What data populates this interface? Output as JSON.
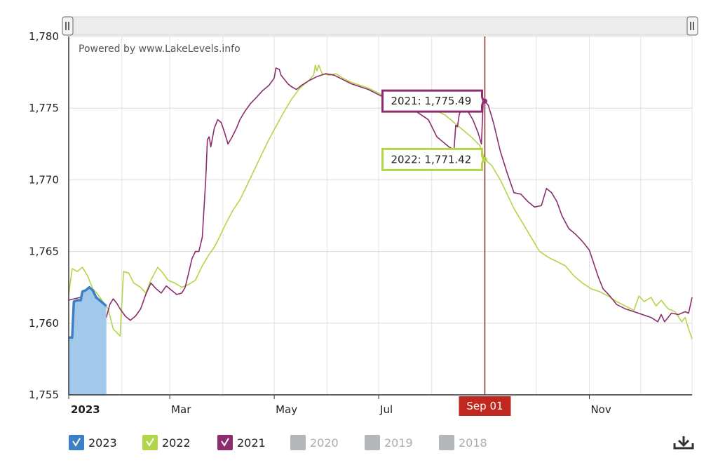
{
  "chart_data": {
    "type": "line",
    "credit": "Powered by www.LakeLevels.info",
    "ylim": [
      1755,
      1780
    ],
    "y_ticks": [
      "1,755",
      "1,760",
      "1,765",
      "1,770",
      "1,775",
      "1,780"
    ],
    "x_ticks": [
      {
        "label": "2023",
        "day": 0,
        "bold": true
      },
      {
        "label": "Mar",
        "day": 59
      },
      {
        "label": "May",
        "day": 120
      },
      {
        "label": "Jul",
        "day": 181
      },
      {
        "label": "Nov",
        "day": 304
      }
    ],
    "cursor": {
      "label": "Sep 01",
      "day": 243
    },
    "tooltips": [
      {
        "series": "2021",
        "text": "2021: 1,775.49",
        "value": 1775.49
      },
      {
        "series": "2022",
        "text": "2022: 1,771.42",
        "value": 1771.42
      }
    ],
    "series": [
      {
        "name": "2023",
        "color": "#3d7fc4",
        "fill": "#a2c8ea",
        "area": true,
        "points": [
          [
            0,
            1759
          ],
          [
            2,
            1759
          ],
          [
            3,
            1761.5
          ],
          [
            5,
            1761.6
          ],
          [
            7,
            1761.6
          ],
          [
            8,
            1762.2
          ],
          [
            10,
            1762.3
          ],
          [
            12,
            1762.5
          ],
          [
            14,
            1762.3
          ],
          [
            16,
            1761.8
          ],
          [
            18,
            1761.6
          ],
          [
            20,
            1761.4
          ],
          [
            22,
            1761.2
          ]
        ]
      },
      {
        "name": "2022",
        "color": "#b3d54a",
        "points": [
          [
            0,
            1762
          ],
          [
            2,
            1763.8
          ],
          [
            5,
            1763.6
          ],
          [
            8,
            1763.9
          ],
          [
            11,
            1763.3
          ],
          [
            14,
            1762.4
          ],
          [
            17,
            1762
          ],
          [
            20,
            1761.5
          ],
          [
            23,
            1761
          ],
          [
            26,
            1759.6
          ],
          [
            30,
            1759.1
          ],
          [
            32,
            1763.6
          ],
          [
            35,
            1763.5
          ],
          [
            38,
            1762.8
          ],
          [
            42,
            1762.5
          ],
          [
            45,
            1762.1
          ],
          [
            48,
            1763
          ],
          [
            52,
            1763.9
          ],
          [
            55,
            1763.5
          ],
          [
            58,
            1763
          ],
          [
            62,
            1762.8
          ],
          [
            66,
            1762.5
          ],
          [
            70,
            1762.7
          ],
          [
            74,
            1763
          ],
          [
            78,
            1764
          ],
          [
            82,
            1764.8
          ],
          [
            85,
            1765.3
          ],
          [
            88,
            1766
          ],
          [
            92,
            1767
          ],
          [
            96,
            1767.9
          ],
          [
            100,
            1768.6
          ],
          [
            104,
            1769.6
          ],
          [
            108,
            1770.6
          ],
          [
            112,
            1771.6
          ],
          [
            116,
            1772.6
          ],
          [
            120,
            1773.5
          ],
          [
            125,
            1774.6
          ],
          [
            130,
            1775.6
          ],
          [
            135,
            1776.4
          ],
          [
            140,
            1776.9
          ],
          [
            143,
            1777.3
          ],
          [
            144,
            1778
          ],
          [
            145,
            1777.6
          ],
          [
            146,
            1778
          ],
          [
            148,
            1777.4
          ],
          [
            152,
            1777.3
          ],
          [
            156,
            1777.4
          ],
          [
            160,
            1777.1
          ],
          [
            165,
            1776.8
          ],
          [
            170,
            1776.6
          ],
          [
            175,
            1776.4
          ],
          [
            180,
            1776.1
          ],
          [
            185,
            1775.8
          ],
          [
            190,
            1775.7
          ],
          [
            195,
            1775.5
          ],
          [
            200,
            1775.3
          ],
          [
            205,
            1775.1
          ],
          [
            210,
            1775
          ],
          [
            215,
            1774.8
          ],
          [
            220,
            1774.5
          ],
          [
            225,
            1774
          ],
          [
            230,
            1773.5
          ],
          [
            235,
            1773
          ],
          [
            240,
            1772.4
          ],
          [
            243,
            1771.42
          ],
          [
            247,
            1771
          ],
          [
            252,
            1770
          ],
          [
            256,
            1769
          ],
          [
            260,
            1768
          ],
          [
            265,
            1767
          ],
          [
            270,
            1766
          ],
          [
            275,
            1765
          ],
          [
            280,
            1764.6
          ],
          [
            285,
            1764.3
          ],
          [
            290,
            1764
          ],
          [
            295,
            1763.3
          ],
          [
            300,
            1762.8
          ],
          [
            305,
            1762.4
          ],
          [
            310,
            1762.2
          ],
          [
            315,
            1761.9
          ],
          [
            320,
            1761.5
          ],
          [
            325,
            1761.2
          ],
          [
            330,
            1760.9
          ],
          [
            333,
            1761.9
          ],
          [
            336,
            1761.5
          ],
          [
            340,
            1761.8
          ],
          [
            343,
            1761.2
          ],
          [
            346,
            1761.6
          ],
          [
            350,
            1761
          ],
          [
            354,
            1760.8
          ],
          [
            358,
            1760.1
          ],
          [
            360,
            1760.4
          ],
          [
            362,
            1759.6
          ],
          [
            364,
            1758.9
          ]
        ]
      },
      {
        "name": "2021",
        "color": "#8c2d6e",
        "points": [
          [
            0,
            1761.6
          ],
          [
            3,
            1761.7
          ],
          [
            7,
            1761.8
          ],
          [
            9,
            1761.6
          ],
          [
            11,
            1762
          ],
          [
            14,
            1761.5
          ],
          [
            17,
            1761
          ],
          [
            20,
            1760.5
          ],
          [
            22,
            1760.4
          ],
          [
            24,
            1761.3
          ],
          [
            26,
            1761.7
          ],
          [
            28,
            1761.4
          ],
          [
            30,
            1761
          ],
          [
            33,
            1760.5
          ],
          [
            36,
            1760.2
          ],
          [
            39,
            1760.5
          ],
          [
            42,
            1761
          ],
          [
            45,
            1762
          ],
          [
            48,
            1762.8
          ],
          [
            51,
            1762.4
          ],
          [
            54,
            1762.1
          ],
          [
            57,
            1762.6
          ],
          [
            60,
            1762.3
          ],
          [
            63,
            1762
          ],
          [
            66,
            1762.1
          ],
          [
            68,
            1762.5
          ],
          [
            70,
            1763.5
          ],
          [
            72,
            1764.5
          ],
          [
            74,
            1765
          ],
          [
            76,
            1765
          ],
          [
            78,
            1766
          ],
          [
            80,
            1770
          ],
          [
            81,
            1772.8
          ],
          [
            82,
            1773
          ],
          [
            83,
            1772.3
          ],
          [
            85,
            1773.6
          ],
          [
            87,
            1774.2
          ],
          [
            89,
            1774
          ],
          [
            91,
            1773.3
          ],
          [
            93,
            1772.5
          ],
          [
            95,
            1772.9
          ],
          [
            98,
            1773.6
          ],
          [
            100,
            1774.2
          ],
          [
            103,
            1774.8
          ],
          [
            106,
            1775.3
          ],
          [
            110,
            1775.8
          ],
          [
            113,
            1776.2
          ],
          [
            117,
            1776.6
          ],
          [
            120,
            1777.1
          ],
          [
            121,
            1777.8
          ],
          [
            123,
            1777.7
          ],
          [
            124,
            1777.3
          ],
          [
            126,
            1777
          ],
          [
            128,
            1776.7
          ],
          [
            130,
            1776.5
          ],
          [
            133,
            1776.3
          ],
          [
            136,
            1776.6
          ],
          [
            140,
            1776.9
          ],
          [
            145,
            1777.2
          ],
          [
            150,
            1777.4
          ],
          [
            155,
            1777.3
          ],
          [
            160,
            1777
          ],
          [
            165,
            1776.7
          ],
          [
            170,
            1776.5
          ],
          [
            175,
            1776.3
          ],
          [
            180,
            1776
          ],
          [
            185,
            1775.7
          ],
          [
            190,
            1775.5
          ],
          [
            195,
            1775.3
          ],
          [
            200,
            1775
          ],
          [
            205,
            1774.6
          ],
          [
            210,
            1774.2
          ],
          [
            215,
            1773
          ],
          [
            222,
            1772.3
          ],
          [
            225,
            1772.1
          ],
          [
            226,
            1773.8
          ],
          [
            227,
            1773.7
          ],
          [
            228,
            1774.5
          ],
          [
            230,
            1775.3
          ],
          [
            233,
            1774.8
          ],
          [
            236,
            1774.2
          ],
          [
            239,
            1773.3
          ],
          [
            241,
            1772.5
          ],
          [
            242,
            1775.3
          ],
          [
            243,
            1775.49
          ],
          [
            245,
            1775.2
          ],
          [
            248,
            1774
          ],
          [
            252,
            1772
          ],
          [
            256,
            1770.5
          ],
          [
            260,
            1769.1
          ],
          [
            264,
            1769
          ],
          [
            268,
            1768.5
          ],
          [
            272,
            1768.1
          ],
          [
            276,
            1768.2
          ],
          [
            279,
            1769.4
          ],
          [
            282,
            1769.1
          ],
          [
            285,
            1768.5
          ],
          [
            288,
            1767.5
          ],
          [
            292,
            1766.6
          ],
          [
            296,
            1766.2
          ],
          [
            300,
            1765.7
          ],
          [
            304,
            1765.1
          ],
          [
            306,
            1764.4
          ],
          [
            309,
            1763.3
          ],
          [
            312,
            1762.4
          ],
          [
            316,
            1761.9
          ],
          [
            320,
            1761.3
          ],
          [
            325,
            1761
          ],
          [
            330,
            1760.8
          ],
          [
            335,
            1760.6
          ],
          [
            340,
            1760.4
          ],
          [
            344,
            1760.1
          ],
          [
            346,
            1760.6
          ],
          [
            348,
            1760.1
          ],
          [
            352,
            1760.7
          ],
          [
            356,
            1760.6
          ],
          [
            360,
            1760.8
          ],
          [
            362,
            1760.7
          ],
          [
            364,
            1761.8
          ]
        ]
      }
    ],
    "legend": [
      {
        "name": "2023",
        "color": "#3d7fc4",
        "active": true
      },
      {
        "name": "2022",
        "color": "#b3d54a",
        "active": true
      },
      {
        "name": "2021",
        "color": "#8c2d6e",
        "active": true
      },
      {
        "name": "2020",
        "color": "#b3b7b9",
        "active": false
      },
      {
        "name": "2019",
        "color": "#b3b7b9",
        "active": false
      },
      {
        "name": "2018",
        "color": "#b3b7b9",
        "active": false
      }
    ],
    "grid": true,
    "legend_position": "bottom-left"
  },
  "icons": {
    "download": "download-icon",
    "scroll_handle": "scroll-handle-icon",
    "checkbox": "checkmark-icon"
  }
}
